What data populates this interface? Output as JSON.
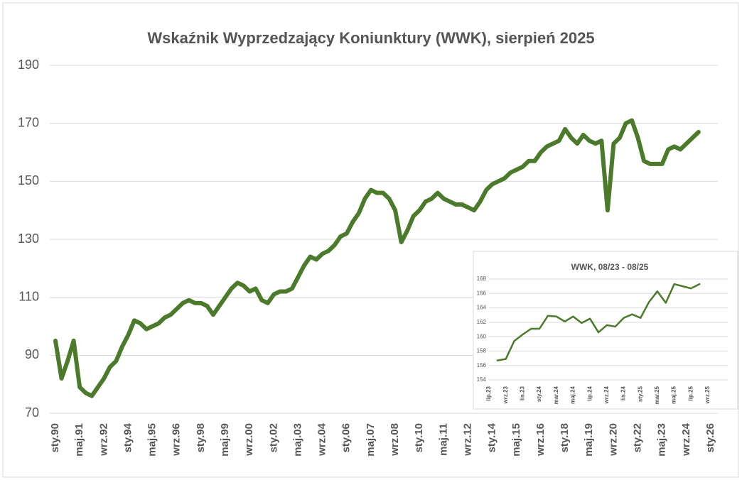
{
  "chart_data": [
    {
      "type": "line",
      "title": "Wskaźnik Wyprzedzający Koniunktury (WWK), sierpień 2025",
      "categories": [
        "sty.90",
        null,
        null,
        null,
        "maj.91",
        null,
        null,
        null,
        "wrz.92",
        null,
        null,
        null,
        "sty.94",
        null,
        null,
        null,
        "maj.95",
        null,
        null,
        null,
        "wrz.96",
        null,
        null,
        null,
        "sty.98",
        null,
        null,
        null,
        "maj.99",
        null,
        null,
        null,
        "wrz.00",
        null,
        null,
        null,
        "sty.02",
        null,
        null,
        null,
        "maj.03",
        null,
        null,
        null,
        "wrz.04",
        null,
        null,
        null,
        "sty.06",
        null,
        null,
        null,
        "maj.07",
        null,
        null,
        null,
        "wrz.08",
        null,
        null,
        null,
        "sty.10",
        null,
        null,
        null,
        "maj.11",
        null,
        null,
        null,
        "wrz.12",
        null,
        null,
        null,
        "sty.14",
        null,
        null,
        null,
        "maj.15",
        null,
        null,
        null,
        "wrz.16",
        null,
        null,
        null,
        "sty.18",
        null,
        null,
        null,
        "maj.19",
        null,
        null,
        null,
        "wrz.20",
        null,
        null,
        null,
        "sty.22",
        null,
        null,
        null,
        "maj.23",
        null,
        null,
        null,
        "wrz.24",
        null,
        null,
        null,
        "sty.26"
      ],
      "values": [
        95,
        82,
        88,
        95,
        79,
        77,
        76,
        79,
        82,
        86,
        88,
        93,
        97,
        102,
        101,
        99,
        100,
        101,
        103,
        104,
        106,
        108,
        109,
        108,
        108,
        107,
        104,
        107,
        110,
        113,
        115,
        114,
        112,
        113,
        109,
        108,
        111,
        112,
        112,
        113,
        117,
        121,
        124,
        123,
        125,
        126,
        128,
        131,
        132,
        136,
        139,
        144,
        147,
        146,
        146,
        144,
        140,
        129,
        133,
        138,
        140,
        143,
        144,
        146,
        144,
        143,
        142,
        142,
        141,
        140,
        143,
        147,
        149,
        150,
        151,
        153,
        154,
        155,
        157,
        157,
        160,
        162,
        163,
        164,
        168,
        165,
        163,
        166,
        164,
        163,
        164,
        140,
        163,
        165,
        170,
        171,
        165,
        157,
        156,
        156,
        156,
        161,
        162,
        161,
        163,
        165,
        167,
        null,
        null
      ],
      "color": "#4a7a2a",
      "ylim": [
        70,
        190
      ],
      "yticks": [
        70,
        90,
        110,
        130,
        150,
        170,
        190
      ],
      "grid": true
    },
    {
      "type": "line",
      "title": "WWK, 08/23 - 08/25",
      "categories": [
        "lip.23",
        null,
        "wrz.23",
        null,
        "lis.23",
        null,
        "sty.24",
        null,
        "mar.24",
        null,
        "maj.24",
        null,
        "lip.24",
        null,
        "wrz.24",
        null,
        "lis.24",
        null,
        "sty.25",
        null,
        "mar.25",
        null,
        "maj.25",
        null,
        "lip.25",
        null,
        "wrz.25"
      ],
      "values": [
        null,
        156.7,
        156.9,
        159.4,
        160.3,
        161.1,
        161.1,
        162.9,
        162.8,
        162.1,
        162.8,
        161.9,
        162.5,
        160.6,
        161.6,
        161.4,
        162.6,
        163.1,
        162.6,
        164.8,
        166.3,
        164.7,
        167.3,
        167.0,
        166.7,
        167.3,
        null
      ],
      "color": "#4a7a2a",
      "ylim": [
        154,
        168
      ],
      "yticks": [
        154,
        156,
        158,
        160,
        162,
        164,
        166,
        168
      ],
      "grid": true
    }
  ]
}
